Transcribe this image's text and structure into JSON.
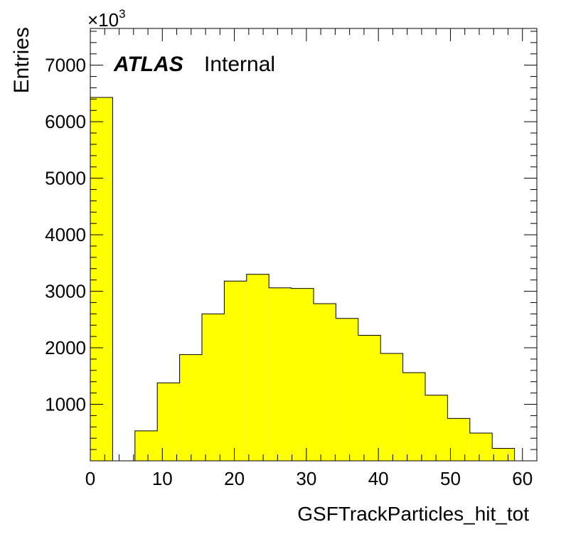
{
  "chart_data": {
    "type": "bar",
    "xlabel": "GSFTrackParticles_hit_tot",
    "ylabel": "Entries",
    "y_multiplier": "×10",
    "y_multiplier_exp": "3",
    "experiment_label": "ATLAS",
    "status_label": "Internal",
    "xlim": [
      0,
      62
    ],
    "ylim": [
      0,
      7650
    ],
    "x_ticks": [
      0,
      10,
      20,
      30,
      40,
      50,
      60
    ],
    "y_ticks": [
      1000,
      2000,
      3000,
      4000,
      5000,
      6000,
      7000
    ],
    "grid": false,
    "fill_color": "#ffff00",
    "line_color": "#000000",
    "bin_edges": [
      0,
      3.1,
      6.2,
      9.3,
      12.4,
      15.5,
      18.6,
      21.7,
      24.8,
      27.9,
      31.0,
      34.1,
      37.2,
      40.3,
      43.4,
      46.5,
      49.6,
      52.7,
      55.8,
      58.9
    ],
    "values": [
      6430,
      0,
      530,
      1380,
      1880,
      2600,
      3180,
      3300,
      3060,
      3050,
      2780,
      2520,
      2220,
      1900,
      1560,
      1160,
      750,
      490,
      220
    ]
  }
}
